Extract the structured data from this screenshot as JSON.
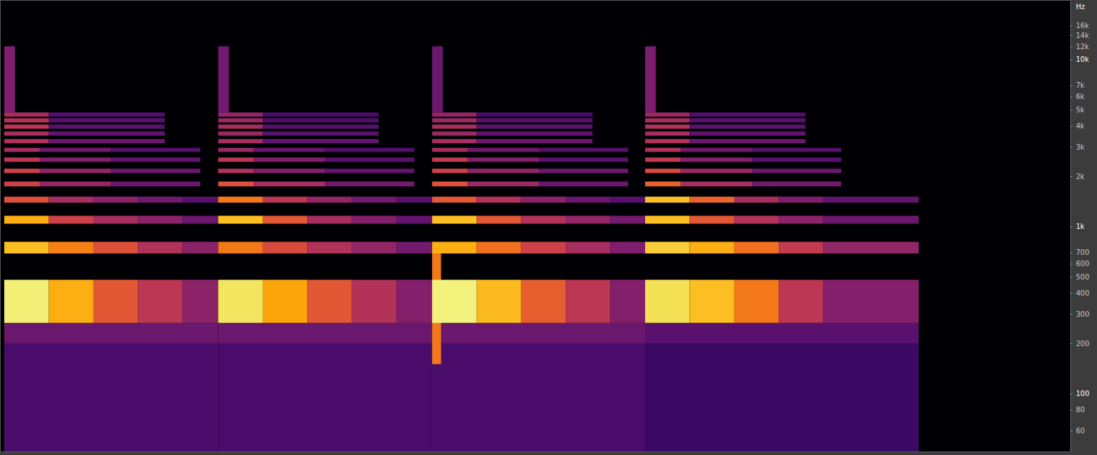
{
  "chart_data": {
    "type": "heatmap",
    "ylabel": "Hz",
    "log": "y",
    "grid": false,
    "tick_labels": "y",
    "xlim": [
      0,
      12
    ],
    "ylim": [
      45,
      22500
    ],
    "yticks": [
      {
        "value": 16000,
        "label": "16k"
      },
      {
        "value": 14000,
        "label": "14k"
      },
      {
        "value": 12000,
        "label": "12k"
      },
      {
        "value": 10000,
        "label": "10k"
      },
      {
        "value": 7000,
        "label": "7k"
      },
      {
        "value": 6000,
        "label": "6k"
      },
      {
        "value": 5000,
        "label": "5k"
      },
      {
        "value": 4000,
        "label": "4k"
      },
      {
        "value": 3000,
        "label": "3k"
      },
      {
        "value": 2000,
        "label": "2k"
      },
      {
        "value": 1000,
        "label": "1k"
      },
      700,
      600,
      500,
      400,
      300,
      200,
      100,
      80,
      60
    ],
    "zlim": [
      0,
      100
    ],
    "cells": [
      [
        0.04,
        2.44,
        45,
        200,
        22
      ],
      [
        0.04,
        2.44,
        200,
        265,
        30
      ],
      [
        0.04,
        0.54,
        265,
        480,
        95
      ],
      [
        0.54,
        1.04,
        265,
        480,
        82
      ],
      [
        1.04,
        1.54,
        265,
        480,
        62
      ],
      [
        1.54,
        2.04,
        265,
        480,
        50
      ],
      [
        2.04,
        2.44,
        265,
        480,
        38
      ],
      [
        0.04,
        0.54,
        690,
        810,
        85
      ],
      [
        0.54,
        1.04,
        690,
        810,
        72
      ],
      [
        1.04,
        1.54,
        690,
        810,
        60
      ],
      [
        1.54,
        2.04,
        690,
        810,
        48
      ],
      [
        2.04,
        2.44,
        690,
        810,
        38
      ],
      [
        0.04,
        0.54,
        1040,
        1160,
        82
      ],
      [
        0.54,
        1.04,
        1040,
        1160,
        55
      ],
      [
        1.04,
        1.54,
        1040,
        1160,
        45
      ],
      [
        1.54,
        2.04,
        1040,
        1160,
        38
      ],
      [
        2.04,
        2.44,
        1040,
        1160,
        30
      ],
      [
        0.04,
        0.54,
        1390,
        1510,
        60
      ],
      [
        0.54,
        1.04,
        1390,
        1510,
        45
      ],
      [
        1.04,
        1.54,
        1390,
        1510,
        38
      ],
      [
        1.54,
        2.04,
        1390,
        1510,
        32
      ],
      [
        2.04,
        2.44,
        1390,
        1510,
        26
      ],
      [
        0.04,
        0.44,
        1740,
        1860,
        55
      ],
      [
        0.44,
        1.24,
        1740,
        1860,
        40
      ],
      [
        1.24,
        2.24,
        1740,
        1860,
        30
      ],
      [
        0.04,
        0.44,
        2090,
        2220,
        55
      ],
      [
        0.44,
        1.24,
        2090,
        2220,
        40
      ],
      [
        1.24,
        2.24,
        2090,
        2220,
        30
      ],
      [
        0.04,
        0.44,
        2440,
        2590,
        50
      ],
      [
        0.44,
        1.24,
        2440,
        2590,
        36
      ],
      [
        1.24,
        2.24,
        2440,
        2590,
        28
      ],
      [
        0.04,
        0.44,
        2800,
        2960,
        45
      ],
      [
        0.44,
        1.24,
        2800,
        2960,
        32
      ],
      [
        1.24,
        2.24,
        2800,
        2960,
        25
      ],
      [
        0.04,
        0.54,
        3150,
        3340,
        48
      ],
      [
        0.54,
        1.84,
        3150,
        3340,
        30
      ],
      [
        0.04,
        0.54,
        3500,
        3710,
        45
      ],
      [
        0.54,
        1.84,
        3500,
        3710,
        28
      ],
      [
        0.04,
        0.54,
        3850,
        4080,
        50
      ],
      [
        0.54,
        1.84,
        3850,
        4080,
        26
      ],
      [
        0.04,
        0.54,
        4200,
        4450,
        48
      ],
      [
        0.54,
        1.84,
        4200,
        4450,
        25
      ],
      [
        0.04,
        0.54,
        4550,
        4820,
        45
      ],
      [
        0.54,
        1.84,
        4550,
        4820,
        24
      ],
      [
        0.04,
        0.16,
        4820,
        12000,
        35
      ],
      [
        2.44,
        4.84,
        45,
        200,
        22
      ],
      [
        2.44,
        4.84,
        200,
        265,
        30
      ],
      [
        2.44,
        2.94,
        265,
        480,
        93
      ],
      [
        2.94,
        3.44,
        265,
        480,
        80
      ],
      [
        3.44,
        3.94,
        265,
        480,
        62
      ],
      [
        3.94,
        4.44,
        265,
        480,
        48
      ],
      [
        4.44,
        4.84,
        265,
        480,
        36
      ],
      [
        2.44,
        2.94,
        690,
        810,
        70
      ],
      [
        2.94,
        3.44,
        690,
        810,
        58
      ],
      [
        3.44,
        3.94,
        690,
        810,
        48
      ],
      [
        3.94,
        4.44,
        690,
        810,
        40
      ],
      [
        4.44,
        4.84,
        690,
        810,
        32
      ],
      [
        2.44,
        2.94,
        1040,
        1160,
        85
      ],
      [
        2.94,
        3.44,
        1040,
        1160,
        62
      ],
      [
        3.44,
        3.94,
        1040,
        1160,
        45
      ],
      [
        3.94,
        4.44,
        1040,
        1160,
        36
      ],
      [
        4.44,
        4.84,
        1040,
        1160,
        28
      ],
      [
        2.44,
        2.94,
        1390,
        1510,
        70
      ],
      [
        2.94,
        3.44,
        1390,
        1510,
        50
      ],
      [
        3.44,
        3.94,
        1390,
        1510,
        40
      ],
      [
        3.94,
        4.44,
        1390,
        1510,
        32
      ],
      [
        4.44,
        4.84,
        1390,
        1510,
        26
      ],
      [
        2.44,
        2.84,
        1740,
        1860,
        60
      ],
      [
        2.84,
        3.64,
        1740,
        1860,
        45
      ],
      [
        3.64,
        4.64,
        1740,
        1860,
        32
      ],
      [
        2.44,
        2.84,
        2090,
        2220,
        48
      ],
      [
        2.84,
        3.64,
        2090,
        2220,
        36
      ],
      [
        3.64,
        4.64,
        2090,
        2220,
        28
      ],
      [
        2.44,
        2.84,
        2440,
        2590,
        50
      ],
      [
        2.84,
        3.64,
        2440,
        2590,
        36
      ],
      [
        3.64,
        4.64,
        2440,
        2590,
        26
      ],
      [
        2.44,
        2.84,
        2800,
        2960,
        42
      ],
      [
        2.84,
        3.64,
        2800,
        2960,
        30
      ],
      [
        3.64,
        4.64,
        2800,
        2960,
        24
      ],
      [
        2.44,
        2.94,
        3150,
        3340,
        45
      ],
      [
        2.94,
        4.24,
        3150,
        3340,
        28
      ],
      [
        2.44,
        2.94,
        3500,
        3710,
        42
      ],
      [
        2.94,
        4.24,
        3500,
        3710,
        26
      ],
      [
        2.44,
        2.94,
        3850,
        4080,
        45
      ],
      [
        2.94,
        4.24,
        3850,
        4080,
        25
      ],
      [
        2.44,
        2.94,
        4200,
        4450,
        42
      ],
      [
        2.94,
        4.24,
        4200,
        4450,
        24
      ],
      [
        2.44,
        2.94,
        4550,
        4820,
        40
      ],
      [
        2.94,
        4.24,
        4550,
        4820,
        22
      ],
      [
        2.44,
        2.56,
        4820,
        12000,
        32
      ],
      [
        4.84,
        7.23,
        45,
        200,
        22
      ],
      [
        4.84,
        7.23,
        200,
        265,
        30
      ],
      [
        4.84,
        4.94,
        150,
        700,
        70
      ],
      [
        4.84,
        5.34,
        265,
        480,
        96
      ],
      [
        5.34,
        5.84,
        265,
        480,
        84
      ],
      [
        5.84,
        6.34,
        265,
        480,
        64
      ],
      [
        6.34,
        6.84,
        265,
        480,
        50
      ],
      [
        6.84,
        7.23,
        265,
        480,
        36
      ],
      [
        4.84,
        5.34,
        690,
        810,
        82
      ],
      [
        5.34,
        5.84,
        690,
        810,
        68
      ],
      [
        5.84,
        6.34,
        690,
        810,
        55
      ],
      [
        6.34,
        6.84,
        690,
        810,
        45
      ],
      [
        6.84,
        7.23,
        690,
        810,
        35
      ],
      [
        4.84,
        5.34,
        1040,
        1160,
        85
      ],
      [
        5.34,
        5.84,
        1040,
        1160,
        62
      ],
      [
        5.84,
        6.34,
        1040,
        1160,
        48
      ],
      [
        6.34,
        6.84,
        1040,
        1160,
        40
      ],
      [
        6.84,
        7.23,
        1040,
        1160,
        32
      ],
      [
        4.84,
        5.34,
        1390,
        1510,
        62
      ],
      [
        5.34,
        5.84,
        1390,
        1510,
        48
      ],
      [
        5.84,
        6.34,
        1390,
        1510,
        38
      ],
      [
        6.34,
        6.84,
        1390,
        1510,
        30
      ],
      [
        6.84,
        7.23,
        1390,
        1510,
        25
      ],
      [
        4.84,
        5.24,
        1740,
        1860,
        60
      ],
      [
        5.24,
        6.04,
        1740,
        1860,
        42
      ],
      [
        6.04,
        7.04,
        1740,
        1860,
        30
      ],
      [
        4.84,
        5.24,
        2090,
        2220,
        55
      ],
      [
        5.24,
        6.04,
        2090,
        2220,
        40
      ],
      [
        6.04,
        7.04,
        2090,
        2220,
        30
      ],
      [
        4.84,
        5.24,
        2440,
        2590,
        52
      ],
      [
        5.24,
        6.04,
        2440,
        2590,
        36
      ],
      [
        6.04,
        7.04,
        2440,
        2590,
        26
      ],
      [
        4.84,
        5.24,
        2800,
        2960,
        45
      ],
      [
        5.24,
        6.04,
        2800,
        2960,
        32
      ],
      [
        6.04,
        7.04,
        2800,
        2960,
        25
      ],
      [
        4.84,
        5.34,
        3150,
        3340,
        45
      ],
      [
        5.34,
        6.64,
        3150,
        3340,
        30
      ],
      [
        4.84,
        5.34,
        3500,
        3710,
        42
      ],
      [
        5.34,
        6.64,
        3500,
        3710,
        28
      ],
      [
        4.84,
        5.34,
        3850,
        4080,
        45
      ],
      [
        5.34,
        6.64,
        3850,
        4080,
        26
      ],
      [
        4.84,
        5.34,
        4200,
        4450,
        42
      ],
      [
        5.34,
        6.64,
        4200,
        4450,
        25
      ],
      [
        4.84,
        5.34,
        4550,
        4820,
        40
      ],
      [
        5.34,
        6.64,
        4550,
        4820,
        22
      ],
      [
        4.84,
        4.96,
        4820,
        12000,
        30
      ],
      [
        7.23,
        10.3,
        45,
        200,
        18
      ],
      [
        7.23,
        10.3,
        200,
        265,
        26
      ],
      [
        7.23,
        7.73,
        265,
        480,
        92
      ],
      [
        7.73,
        8.23,
        265,
        480,
        85
      ],
      [
        8.23,
        8.73,
        265,
        480,
        70
      ],
      [
        8.73,
        9.23,
        265,
        480,
        50
      ],
      [
        9.23,
        10.3,
        265,
        480,
        36
      ],
      [
        7.23,
        7.73,
        690,
        810,
        88
      ],
      [
        7.73,
        8.23,
        690,
        810,
        82
      ],
      [
        8.23,
        8.73,
        690,
        810,
        68
      ],
      [
        8.73,
        9.23,
        690,
        810,
        52
      ],
      [
        9.23,
        10.3,
        690,
        810,
        40
      ],
      [
        7.23,
        7.73,
        1040,
        1160,
        85
      ],
      [
        7.73,
        8.23,
        1040,
        1160,
        62
      ],
      [
        8.23,
        8.73,
        1040,
        1160,
        48
      ],
      [
        8.73,
        9.23,
        1040,
        1160,
        38
      ],
      [
        9.23,
        10.3,
        1040,
        1160,
        30
      ],
      [
        7.23,
        7.73,
        1390,
        1510,
        85
      ],
      [
        7.73,
        8.23,
        1390,
        1510,
        65
      ],
      [
        8.23,
        8.73,
        1390,
        1510,
        45
      ],
      [
        8.73,
        9.23,
        1390,
        1510,
        35
      ],
      [
        9.23,
        10.3,
        1390,
        1510,
        28
      ],
      [
        7.23,
        7.63,
        1740,
        1860,
        65
      ],
      [
        7.63,
        8.43,
        1740,
        1860,
        45
      ],
      [
        8.43,
        9.43,
        1740,
        1860,
        32
      ],
      [
        7.23,
        7.63,
        2090,
        2220,
        58
      ],
      [
        7.63,
        8.43,
        2090,
        2220,
        42
      ],
      [
        8.43,
        9.43,
        2090,
        2220,
        30
      ],
      [
        7.23,
        7.63,
        2440,
        2590,
        52
      ],
      [
        7.63,
        8.43,
        2440,
        2590,
        36
      ],
      [
        8.43,
        9.43,
        2440,
        2590,
        26
      ],
      [
        7.23,
        7.63,
        2800,
        2960,
        48
      ],
      [
        7.63,
        8.43,
        2800,
        2960,
        32
      ],
      [
        8.43,
        9.43,
        2800,
        2960,
        25
      ],
      [
        7.23,
        7.73,
        3150,
        3340,
        48
      ],
      [
        7.73,
        9.03,
        3150,
        3340,
        30
      ],
      [
        7.23,
        7.73,
        3500,
        3710,
        45
      ],
      [
        7.73,
        9.03,
        3500,
        3710,
        28
      ],
      [
        7.23,
        7.73,
        3850,
        4080,
        48
      ],
      [
        7.73,
        9.03,
        3850,
        4080,
        26
      ],
      [
        7.23,
        7.73,
        4200,
        4450,
        45
      ],
      [
        7.73,
        9.03,
        4200,
        4450,
        25
      ],
      [
        7.23,
        7.73,
        4550,
        4820,
        42
      ],
      [
        7.73,
        9.03,
        4550,
        4820,
        24
      ],
      [
        7.23,
        7.35,
        4820,
        12000,
        34
      ]
    ]
  }
}
